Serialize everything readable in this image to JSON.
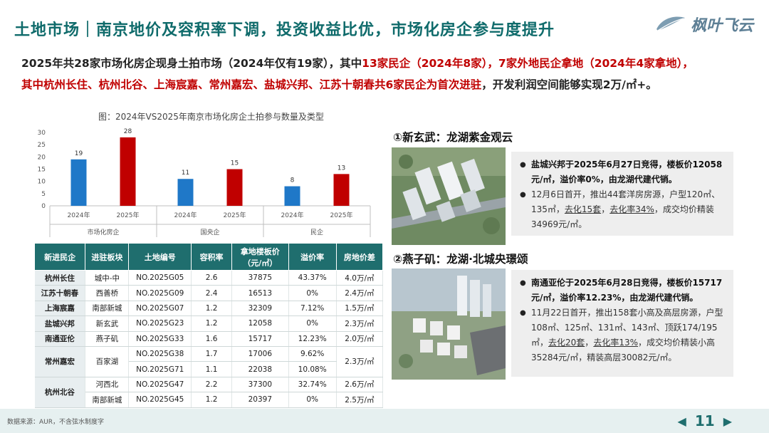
{
  "header": {
    "title": "土地市场｜南京地价及容积率下调，投资收益比优，市场化房企参与度提升",
    "logo_text": "枫叶飞云"
  },
  "intro": {
    "p1": "2025年共28家市场化房企现身土拍市场（2024年仅有19家），其中",
    "p2": "13家民企（2024年8家），7家外地民企拿地（2024年4家拿地），",
    "p3": "其中杭州长住、杭州北谷、上海宸嘉、常州嘉宏、盐城兴邦、江苏十朝春共6家民企为首次进驻",
    "p4": "，开发利润空间能够实现2万/㎡+。"
  },
  "chart_data": {
    "type": "bar",
    "title": "图：2024年VS2025年南京市场化房企土拍参与数量及类型",
    "groups": [
      "市场化房企",
      "国央企",
      "民企"
    ],
    "categories": [
      "2024年",
      "2025年"
    ],
    "series": [
      {
        "group": "市场化房企",
        "values": [
          19,
          28
        ]
      },
      {
        "group": "国央企",
        "values": [
          11,
          15
        ]
      },
      {
        "group": "民企",
        "values": [
          8,
          13
        ]
      }
    ],
    "colors": {
      "2024": "#1f78c8",
      "2025": "#c00000"
    },
    "ylim": [
      0,
      30
    ],
    "yticks": [
      0,
      5,
      10,
      15,
      20,
      25,
      30
    ],
    "grid": false,
    "legend": "none"
  },
  "table": {
    "headers": [
      "新进民企",
      "进驻板块",
      "土地编号",
      "容积率",
      "拿地楼板价（元/㎡）",
      "溢价率",
      "房地价差"
    ],
    "rows": [
      [
        "杭州长住",
        "城中-中",
        "NO.2025G05",
        "2.6",
        "37875",
        "43.37%",
        "4.0万/㎡"
      ],
      [
        "江苏十朝春",
        "西善桥",
        "NO.2025G09",
        "2.4",
        "16513",
        "0%",
        "2.4万/㎡"
      ],
      [
        "上海宸嘉",
        "南部新城",
        "NO.2025G07",
        "1.2",
        "32309",
        "7.12%",
        "1.5万/㎡"
      ],
      [
        "盐城兴邦",
        "新玄武",
        "NO.2025G23",
        "1.2",
        "12058",
        "0%",
        "2.3万/㎡"
      ],
      [
        "南通亚伦",
        "燕子矶",
        "NO.2025G33",
        "1.6",
        "15717",
        "12.23%",
        "2.0万/㎡"
      ],
      [
        "常州嘉宏",
        "百家湖",
        "NO.2025G38",
        "1.7",
        "17006",
        "9.62%",
        "2.3万/㎡"
      ],
      [
        "",
        "",
        "NO.2025G71",
        "1.1",
        "22038",
        "10.08%",
        ""
      ],
      [
        "杭州北谷",
        "河西北",
        "NO.2025G47",
        "2.2",
        "37300",
        "32.74%",
        "2.6万/㎡"
      ],
      [
        "",
        "南部新城",
        "NO.2025G45",
        "1.2",
        "20397",
        "0%",
        "2.5万/㎡"
      ]
    ]
  },
  "projects": [
    {
      "title": "①新玄武：龙湖紫金观云",
      "b1": "盐城兴邦于2025年6月27日竞得，楼板价12058元/㎡，溢价率0%，由龙湖代建代销。",
      "b2a": "12月6日首开，推出44套洋房房源，户型120㎡、135㎡，",
      "b2u1": "去化15套",
      "b2sep": "，",
      "b2u2": "去化率34%",
      "b2b": "，成交均价精装34969元/㎡。"
    },
    {
      "title": "②燕子矶：龙湖·北城央璟颂",
      "b1": "南通亚伦于2025年6月28日竞得，楼板价15717元/㎡，溢价率12.23%，由龙湖代建代销。",
      "b2a": "11月22日首开，推出158套小高及高层房源，户型108㎡、125㎡、131㎡、143㎡、顶跃174/195㎡，",
      "b2u1": "去化20套",
      "b2sep": "，",
      "b2u2": "去化率13%",
      "b2b": "，成交均价精装小高35284元/㎡，精装高层30082元/㎡。"
    }
  ],
  "footer": {
    "source": "数据来源：AUR，不含弦水制度字",
    "page": "11",
    "prev": "◀",
    "next": "▶"
  },
  "colors": {
    "accent": "#1f6e6e",
    "red": "#c00000",
    "blue": "#1f78c8"
  }
}
